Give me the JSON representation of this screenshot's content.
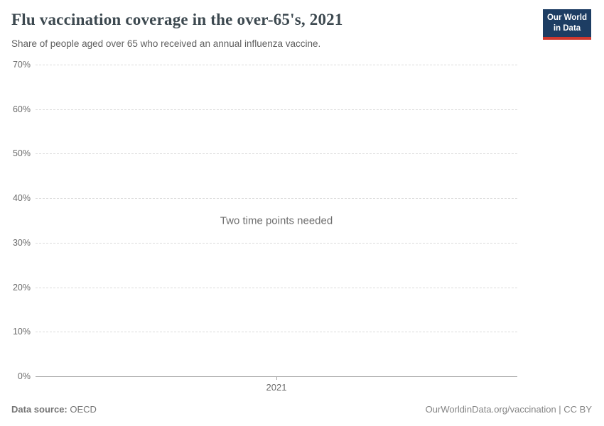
{
  "header": {
    "title": "Flu vaccination coverage in the over-65's, 2021",
    "subtitle": "Share of people aged over 65 who received an annual influenza vaccine.",
    "logo": {
      "line1": "Our World",
      "line2": "in Data"
    }
  },
  "chart_data": {
    "type": "line",
    "title": "Flu vaccination coverage in the over-65's, 2021",
    "subtitle": "Share of people aged over 65 who received an annual influenza vaccine.",
    "series": [],
    "x_tick_labels": [
      "2021"
    ],
    "y_tick_labels": [
      "70%",
      "60%",
      "50%",
      "40%",
      "30%",
      "20%",
      "10%",
      "0%"
    ],
    "ylim": [
      0,
      70
    ],
    "grid": true,
    "legend": "none",
    "annotation": "Two time points needed"
  },
  "footer": {
    "datasource_label": "Data source:",
    "datasource_value": "OECD",
    "attribution": "OurWorldinData.org/vaccination | CC BY"
  },
  "colors": {
    "logo_bg": "#1d3d63",
    "logo_stripe": "#d0382e",
    "title_text": "#3d4950",
    "gridline": "#dcdcdc",
    "axis_line": "#a5a5a5"
  }
}
